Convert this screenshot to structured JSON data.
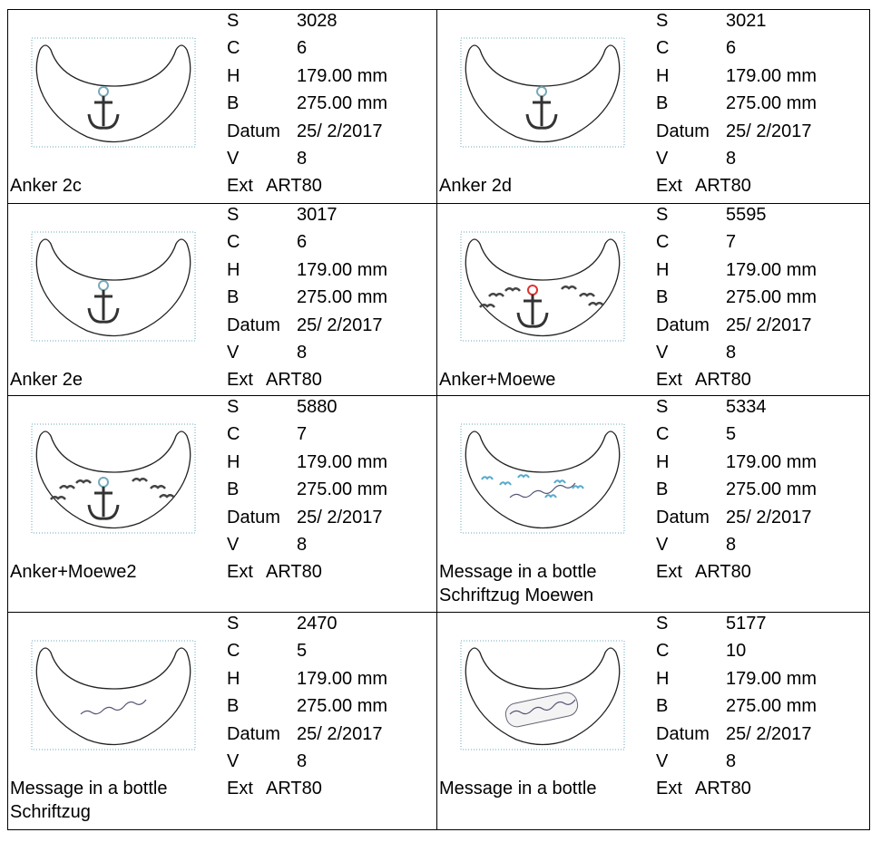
{
  "items": [
    {
      "name": [
        "Anker 2c"
      ],
      "fields": [
        [
          "S",
          "3028"
        ],
        [
          "C",
          "6"
        ],
        [
          "H",
          "179.00 mm"
        ],
        [
          "B",
          "275.00 mm"
        ],
        [
          "Datum",
          "25/ 2/2017"
        ],
        [
          "V",
          "8"
        ],
        [
          "Ext",
          "ART80"
        ]
      ]
    },
    {
      "name": [
        "Anker 2d"
      ],
      "fields": [
        [
          "S",
          "3021"
        ],
        [
          "C",
          "6"
        ],
        [
          "H",
          "179.00 mm"
        ],
        [
          "B",
          "275.00 mm"
        ],
        [
          "Datum",
          "25/ 2/2017"
        ],
        [
          "V",
          "8"
        ],
        [
          "Ext",
          "ART80"
        ]
      ]
    },
    {
      "name": [
        "Anker 2e"
      ],
      "fields": [
        [
          "S",
          "3017"
        ],
        [
          "C",
          "6"
        ],
        [
          "H",
          "179.00 mm"
        ],
        [
          "B",
          "275.00 mm"
        ],
        [
          "Datum",
          "25/ 2/2017"
        ],
        [
          "V",
          "8"
        ],
        [
          "Ext",
          "ART80"
        ]
      ]
    },
    {
      "name": [
        "Anker+Moewe"
      ],
      "fields": [
        [
          "S",
          "5595"
        ],
        [
          "C",
          "7"
        ],
        [
          "H",
          "179.00 mm"
        ],
        [
          "B",
          "275.00 mm"
        ],
        [
          "Datum",
          "25/ 2/2017"
        ],
        [
          "V",
          "8"
        ],
        [
          "Ext",
          "ART80"
        ]
      ]
    },
    {
      "name": [
        "Anker+Moewe2"
      ],
      "fields": [
        [
          "S",
          "5880"
        ],
        [
          "C",
          "7"
        ],
        [
          "H",
          "179.00 mm"
        ],
        [
          "B",
          "275.00 mm"
        ],
        [
          "Datum",
          "25/ 2/2017"
        ],
        [
          "V",
          "8"
        ],
        [
          "Ext",
          "ART80"
        ]
      ]
    },
    {
      "name": [
        "Message in a bottle",
        "Schriftzug Moewen"
      ],
      "fields": [
        [
          "S",
          "5334"
        ],
        [
          "C",
          "5"
        ],
        [
          "H",
          "179.00 mm"
        ],
        [
          "B",
          "275.00 mm"
        ],
        [
          "Datum",
          "25/ 2/2017"
        ],
        [
          "V",
          "8"
        ],
        [
          "Ext",
          "ART80"
        ]
      ]
    },
    {
      "name": [
        "Message in a bottle",
        "Schriftzug"
      ],
      "fields": [
        [
          "S",
          "2470"
        ],
        [
          "C",
          "5"
        ],
        [
          "H",
          "179.00 mm"
        ],
        [
          "B",
          "275.00 mm"
        ],
        [
          "Datum",
          "25/ 2/2017"
        ],
        [
          "V",
          "8"
        ],
        [
          "Ext",
          "ART80"
        ]
      ]
    },
    {
      "name": [
        "Message in a bottle"
      ],
      "fields": [
        [
          "S",
          "5177"
        ],
        [
          "C",
          "10"
        ],
        [
          "H",
          "179.00 mm"
        ],
        [
          "B",
          "275.00 mm"
        ],
        [
          "Datum",
          "25/ 2/2017"
        ],
        [
          "V",
          "8"
        ],
        [
          "Ext",
          "ART80"
        ]
      ]
    }
  ]
}
